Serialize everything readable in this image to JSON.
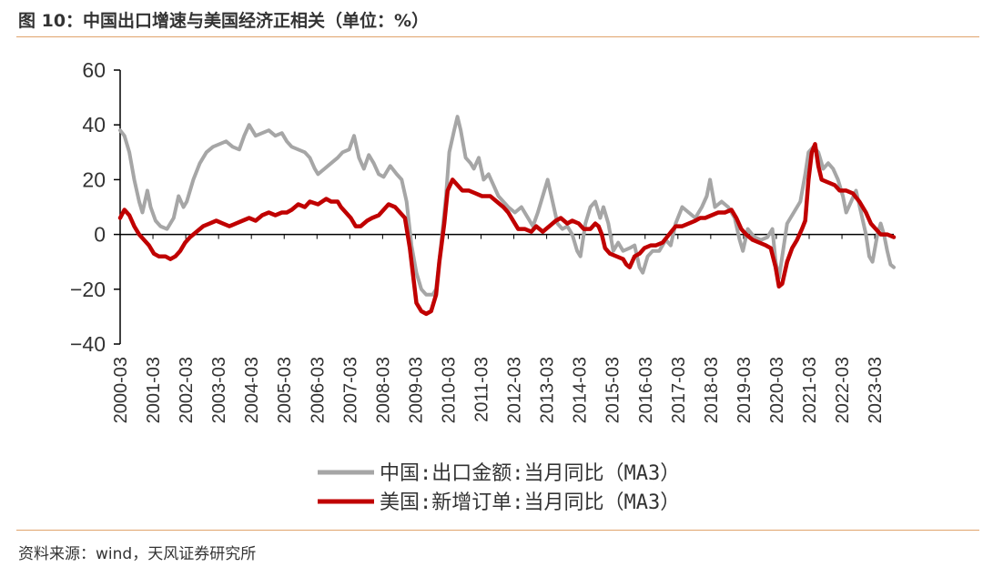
{
  "header": {
    "title": "图 10：中国出口增速与美国经济正相关（单位：%）"
  },
  "footer": {
    "source": "资料来源：wind，天风证券研究所"
  },
  "chart_data": {
    "type": "line",
    "ylim": [
      -40,
      60
    ],
    "yticks": [
      "60",
      "40",
      "20",
      "0",
      "−20",
      "−40"
    ],
    "ytick_values": [
      60,
      40,
      20,
      0,
      -20,
      -40
    ],
    "x_start": 2000.17,
    "x_end": 2023.75,
    "xtick_labels": [
      "2000-03",
      "2001-03",
      "2002-03",
      "2003-03",
      "2004-03",
      "2005-03",
      "2006-03",
      "2007-03",
      "2008-03",
      "2009-03",
      "2010-03",
      "2011-03",
      "2012-03",
      "2013-03",
      "2014-03",
      "2015-03",
      "2016-03",
      "2017-03",
      "2018-03",
      "2019-03",
      "2020-03",
      "2021-03",
      "2022-03",
      "2023-03"
    ],
    "legend_position": "bottom",
    "series": [
      {
        "name": "中国:出口金额:当月同比（MA3）",
        "color": "#a6a6a6",
        "points": [
          [
            2000.17,
            38
          ],
          [
            2000.3,
            36
          ],
          [
            2000.45,
            30
          ],
          [
            2000.6,
            20
          ],
          [
            2000.75,
            12
          ],
          [
            2000.85,
            8
          ],
          [
            2001.0,
            16
          ],
          [
            2001.1,
            10
          ],
          [
            2001.25,
            5
          ],
          [
            2001.4,
            3
          ],
          [
            2001.6,
            2
          ],
          [
            2001.8,
            6
          ],
          [
            2001.95,
            14
          ],
          [
            2002.1,
            10
          ],
          [
            2002.2,
            12
          ],
          [
            2002.4,
            20
          ],
          [
            2002.6,
            26
          ],
          [
            2002.8,
            30
          ],
          [
            2003.0,
            32
          ],
          [
            2003.2,
            33
          ],
          [
            2003.4,
            34
          ],
          [
            2003.6,
            32
          ],
          [
            2003.8,
            31
          ],
          [
            2003.95,
            36
          ],
          [
            2004.1,
            40
          ],
          [
            2004.3,
            36
          ],
          [
            2004.5,
            37
          ],
          [
            2004.7,
            38
          ],
          [
            2004.9,
            36
          ],
          [
            2005.1,
            37
          ],
          [
            2005.25,
            34
          ],
          [
            2005.4,
            32
          ],
          [
            2005.6,
            31
          ],
          [
            2005.8,
            30
          ],
          [
            2005.95,
            28
          ],
          [
            2006.1,
            24
          ],
          [
            2006.2,
            22
          ],
          [
            2006.4,
            24
          ],
          [
            2006.6,
            26
          ],
          [
            2006.8,
            28
          ],
          [
            2006.95,
            30
          ],
          [
            2007.15,
            31
          ],
          [
            2007.3,
            36
          ],
          [
            2007.45,
            28
          ],
          [
            2007.6,
            24
          ],
          [
            2007.75,
            29
          ],
          [
            2007.9,
            26
          ],
          [
            2008.05,
            22
          ],
          [
            2008.2,
            21
          ],
          [
            2008.4,
            25
          ],
          [
            2008.6,
            22
          ],
          [
            2008.75,
            20
          ],
          [
            2008.9,
            12
          ],
          [
            2009.05,
            -4
          ],
          [
            2009.2,
            -14
          ],
          [
            2009.35,
            -20
          ],
          [
            2009.5,
            -22
          ],
          [
            2009.7,
            -22
          ],
          [
            2009.8,
            -20
          ],
          [
            2009.95,
            -4
          ],
          [
            2010.1,
            14
          ],
          [
            2010.2,
            30
          ],
          [
            2010.35,
            38
          ],
          [
            2010.45,
            43
          ],
          [
            2010.55,
            38
          ],
          [
            2010.7,
            28
          ],
          [
            2010.85,
            26
          ],
          [
            2010.95,
            24
          ],
          [
            2011.1,
            28
          ],
          [
            2011.25,
            20
          ],
          [
            2011.4,
            22
          ],
          [
            2011.55,
            18
          ],
          [
            2011.7,
            14
          ],
          [
            2011.85,
            12
          ],
          [
            2012.0,
            10
          ],
          [
            2012.2,
            8
          ],
          [
            2012.4,
            10
          ],
          [
            2012.6,
            6
          ],
          [
            2012.75,
            3
          ],
          [
            2012.9,
            8
          ],
          [
            2013.05,
            14
          ],
          [
            2013.2,
            20
          ],
          [
            2013.35,
            12
          ],
          [
            2013.5,
            4
          ],
          [
            2013.65,
            2
          ],
          [
            2013.8,
            3
          ],
          [
            2013.95,
            0
          ],
          [
            2014.1,
            -6
          ],
          [
            2014.2,
            -8
          ],
          [
            2014.35,
            4
          ],
          [
            2014.5,
            10
          ],
          [
            2014.65,
            12
          ],
          [
            2014.8,
            6
          ],
          [
            2014.9,
            10
          ],
          [
            2015.05,
            4
          ],
          [
            2015.2,
            -6
          ],
          [
            2015.35,
            -3
          ],
          [
            2015.5,
            -6
          ],
          [
            2015.7,
            -5
          ],
          [
            2015.85,
            -4
          ],
          [
            2016.0,
            -12
          ],
          [
            2016.1,
            -14
          ],
          [
            2016.25,
            -8
          ],
          [
            2016.4,
            -6
          ],
          [
            2016.6,
            -6
          ],
          [
            2016.8,
            -2
          ],
          [
            2016.95,
            -4
          ],
          [
            2017.1,
            4
          ],
          [
            2017.3,
            10
          ],
          [
            2017.5,
            8
          ],
          [
            2017.7,
            6
          ],
          [
            2017.9,
            10
          ],
          [
            2018.05,
            14
          ],
          [
            2018.15,
            20
          ],
          [
            2018.3,
            10
          ],
          [
            2018.5,
            12
          ],
          [
            2018.7,
            10
          ],
          [
            2018.9,
            6
          ],
          [
            2019.05,
            -2
          ],
          [
            2019.15,
            -6
          ],
          [
            2019.3,
            2
          ],
          [
            2019.5,
            -1
          ],
          [
            2019.7,
            -2
          ],
          [
            2019.9,
            -1
          ],
          [
            2020.05,
            2
          ],
          [
            2020.15,
            -10
          ],
          [
            2020.25,
            -16
          ],
          [
            2020.35,
            -8
          ],
          [
            2020.5,
            4
          ],
          [
            2020.7,
            8
          ],
          [
            2020.9,
            12
          ],
          [
            2021.05,
            22
          ],
          [
            2021.15,
            30
          ],
          [
            2021.3,
            32
          ],
          [
            2021.45,
            30
          ],
          [
            2021.6,
            24
          ],
          [
            2021.75,
            26
          ],
          [
            2021.9,
            24
          ],
          [
            2022.05,
            20
          ],
          [
            2022.2,
            14
          ],
          [
            2022.3,
            8
          ],
          [
            2022.45,
            12
          ],
          [
            2022.6,
            16
          ],
          [
            2022.75,
            8
          ],
          [
            2022.9,
            0
          ],
          [
            2023.0,
            -8
          ],
          [
            2023.1,
            -10
          ],
          [
            2023.25,
            0
          ],
          [
            2023.35,
            4
          ],
          [
            2023.45,
            0
          ],
          [
            2023.55,
            -6
          ],
          [
            2023.65,
            -11
          ],
          [
            2023.75,
            -12
          ]
        ]
      },
      {
        "name": "美国:新增订单:当月同比（MA3）",
        "color": "#c00000",
        "points": [
          [
            2000.17,
            6
          ],
          [
            2000.3,
            9
          ],
          [
            2000.45,
            7
          ],
          [
            2000.6,
            3
          ],
          [
            2000.75,
            0
          ],
          [
            2000.9,
            -2
          ],
          [
            2001.05,
            -4
          ],
          [
            2001.2,
            -7
          ],
          [
            2001.35,
            -8
          ],
          [
            2001.55,
            -8
          ],
          [
            2001.7,
            -9
          ],
          [
            2001.85,
            -8
          ],
          [
            2002.0,
            -6
          ],
          [
            2002.15,
            -3
          ],
          [
            2002.3,
            -1
          ],
          [
            2002.5,
            1
          ],
          [
            2002.7,
            3
          ],
          [
            2002.9,
            4
          ],
          [
            2003.1,
            5
          ],
          [
            2003.3,
            4
          ],
          [
            2003.5,
            3
          ],
          [
            2003.7,
            4
          ],
          [
            2003.9,
            5
          ],
          [
            2004.1,
            6
          ],
          [
            2004.3,
            5
          ],
          [
            2004.5,
            7
          ],
          [
            2004.7,
            8
          ],
          [
            2004.9,
            7
          ],
          [
            2005.1,
            8
          ],
          [
            2005.25,
            8
          ],
          [
            2005.4,
            9
          ],
          [
            2005.6,
            11
          ],
          [
            2005.8,
            10
          ],
          [
            2005.95,
            12
          ],
          [
            2006.2,
            11
          ],
          [
            2006.45,
            13
          ],
          [
            2006.6,
            12
          ],
          [
            2006.8,
            12
          ],
          [
            2006.9,
            10
          ],
          [
            2007.05,
            8
          ],
          [
            2007.2,
            6
          ],
          [
            2007.35,
            3
          ],
          [
            2007.5,
            3
          ],
          [
            2007.7,
            5
          ],
          [
            2007.85,
            6
          ],
          [
            2008.05,
            7
          ],
          [
            2008.2,
            9
          ],
          [
            2008.35,
            11
          ],
          [
            2008.55,
            10
          ],
          [
            2008.7,
            8
          ],
          [
            2008.85,
            6
          ],
          [
            2009.0,
            -5
          ],
          [
            2009.1,
            -15
          ],
          [
            2009.2,
            -25
          ],
          [
            2009.35,
            -28
          ],
          [
            2009.5,
            -29
          ],
          [
            2009.65,
            -28
          ],
          [
            2009.8,
            -22
          ],
          [
            2009.9,
            -10
          ],
          [
            2010.05,
            4
          ],
          [
            2010.15,
            16
          ],
          [
            2010.3,
            20
          ],
          [
            2010.45,
            18
          ],
          [
            2010.6,
            16
          ],
          [
            2010.8,
            16
          ],
          [
            2011.0,
            15
          ],
          [
            2011.2,
            14
          ],
          [
            2011.45,
            14
          ],
          [
            2011.65,
            12
          ],
          [
            2011.85,
            10
          ],
          [
            2012.0,
            8
          ],
          [
            2012.15,
            5
          ],
          [
            2012.3,
            2
          ],
          [
            2012.5,
            2
          ],
          [
            2012.7,
            1
          ],
          [
            2012.85,
            3
          ],
          [
            2013.05,
            1
          ],
          [
            2013.25,
            3
          ],
          [
            2013.45,
            5
          ],
          [
            2013.6,
            6
          ],
          [
            2013.8,
            4
          ],
          [
            2013.95,
            5
          ],
          [
            2014.15,
            4
          ],
          [
            2014.3,
            2
          ],
          [
            2014.5,
            2
          ],
          [
            2014.65,
            4
          ],
          [
            2014.75,
            3
          ],
          [
            2014.85,
            0
          ],
          [
            2014.95,
            -5
          ],
          [
            2015.1,
            -7
          ],
          [
            2015.3,
            -8
          ],
          [
            2015.5,
            -9
          ],
          [
            2015.6,
            -11
          ],
          [
            2015.7,
            -12
          ],
          [
            2015.85,
            -8
          ],
          [
            2016.0,
            -7
          ],
          [
            2016.15,
            -5
          ],
          [
            2016.35,
            -4
          ],
          [
            2016.5,
            -4
          ],
          [
            2016.7,
            -3
          ],
          [
            2016.9,
            0
          ],
          [
            2017.1,
            3
          ],
          [
            2017.3,
            3
          ],
          [
            2017.5,
            4
          ],
          [
            2017.7,
            5
          ],
          [
            2017.85,
            6
          ],
          [
            2018.0,
            6
          ],
          [
            2018.2,
            7
          ],
          [
            2018.4,
            8
          ],
          [
            2018.6,
            8
          ],
          [
            2018.8,
            9
          ],
          [
            2018.95,
            6
          ],
          [
            2019.1,
            2
          ],
          [
            2019.25,
            0
          ],
          [
            2019.45,
            -2
          ],
          [
            2019.65,
            -3
          ],
          [
            2019.85,
            -4
          ],
          [
            2020.0,
            -5
          ],
          [
            2020.15,
            -12
          ],
          [
            2020.25,
            -19
          ],
          [
            2020.35,
            -18
          ],
          [
            2020.5,
            -10
          ],
          [
            2020.65,
            -5
          ],
          [
            2020.8,
            -2
          ],
          [
            2020.95,
            2
          ],
          [
            2021.05,
            5
          ],
          [
            2021.15,
            20
          ],
          [
            2021.25,
            30
          ],
          [
            2021.35,
            33
          ],
          [
            2021.45,
            25
          ],
          [
            2021.55,
            20
          ],
          [
            2021.75,
            19
          ],
          [
            2021.95,
            18
          ],
          [
            2022.1,
            16
          ],
          [
            2022.3,
            16
          ],
          [
            2022.5,
            15
          ],
          [
            2022.7,
            12
          ],
          [
            2022.9,
            8
          ],
          [
            2023.05,
            4
          ],
          [
            2023.2,
            2
          ],
          [
            2023.35,
            0
          ],
          [
            2023.55,
            0
          ],
          [
            2023.75,
            -1
          ]
        ]
      }
    ]
  }
}
